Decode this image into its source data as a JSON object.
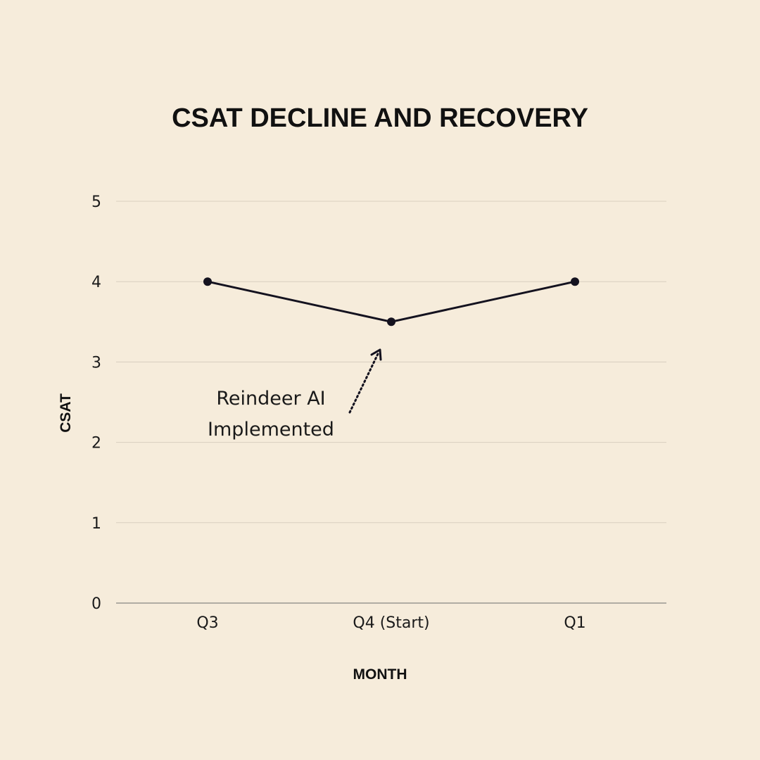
{
  "chart_data": {
    "type": "line",
    "title": "CSAT DECLINE AND RECOVERY",
    "xlabel": "MONTH",
    "ylabel": "CSAT",
    "categories": [
      "Q3",
      "Q4 (Start)",
      "Q1"
    ],
    "yticks": [
      "0",
      "1",
      "2",
      "3",
      "4",
      "5"
    ],
    "ylim": [
      0,
      5
    ],
    "grid": true,
    "series": [
      {
        "values": [
          4,
          3.5,
          4
        ]
      }
    ],
    "annotation": {
      "lines": [
        "Reindeer AI",
        "Implemented"
      ],
      "target_category": "Q4 (Start)"
    },
    "colors": {
      "background": "#f6ecdb",
      "line": "#14121f",
      "grid": "#d9cfbf"
    }
  }
}
